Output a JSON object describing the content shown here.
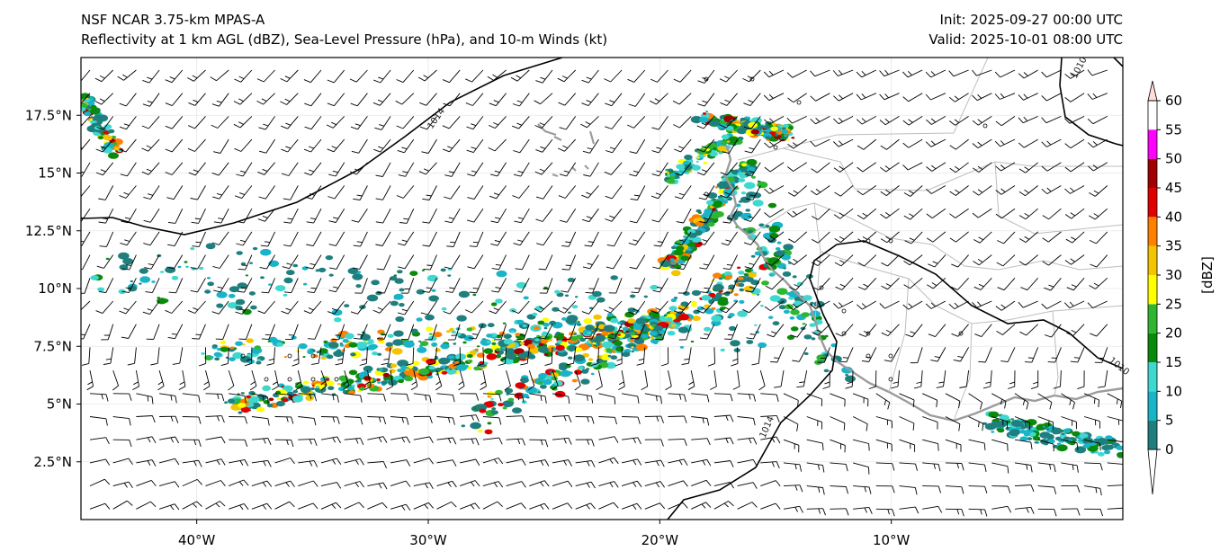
{
  "header": {
    "model": "NSF NCAR 3.75-km MPAS-A",
    "fields": "Reflectivity at 1 km AGL (dBZ), Sea-Level Pressure (hPa), and 10-m Winds (kt)",
    "init": "Init: 2025-09-27 00:00 UTC",
    "valid": "Valid: 2025-10-01 08:00 UTC"
  },
  "map": {
    "lon_range": [
      -45,
      0
    ],
    "lat_range": [
      0,
      20
    ],
    "x_ticks": [
      {
        "lon": -40,
        "label": "40°W"
      },
      {
        "lon": -30,
        "label": "30°W"
      },
      {
        "lon": -20,
        "label": "20°W"
      },
      {
        "lon": -10,
        "label": "10°W"
      }
    ],
    "y_ticks": [
      {
        "lat": 17.5,
        "label": "17.5°N"
      },
      {
        "lat": 15,
        "label": "15°N"
      },
      {
        "lat": 12.5,
        "label": "12.5°N"
      },
      {
        "lat": 10,
        "label": "10°N"
      },
      {
        "lat": 7.5,
        "label": "7.5°N"
      },
      {
        "lat": 5,
        "label": "5°N"
      },
      {
        "lat": 2.5,
        "label": "2.5°N"
      }
    ],
    "contour_labels": [
      "1014",
      "1014",
      "1010",
      "1010"
    ]
  },
  "colorbar": {
    "label": "[dBZ]",
    "levels": [
      0,
      5,
      10,
      15,
      20,
      25,
      30,
      35,
      40,
      45,
      50,
      55,
      60
    ],
    "tick_labels": [
      "0",
      "5",
      "10",
      "15",
      "20",
      "25",
      "30",
      "35",
      "40",
      "45",
      "50",
      "55",
      "60"
    ],
    "colors": [
      "#ffffff",
      "#1f7f7f",
      "#19b4c8",
      "#3fd8d0",
      "#0a8a0a",
      "#2fb52f",
      "#ffff00",
      "#f5c400",
      "#ff7f00",
      "#e00000",
      "#a00000",
      "#ff00ff",
      "#ffe0d8"
    ]
  },
  "colors": {
    "coast": "#9c9c9c",
    "border": "#bdbdbd",
    "isobar": "#000000",
    "barb": "#000000"
  }
}
